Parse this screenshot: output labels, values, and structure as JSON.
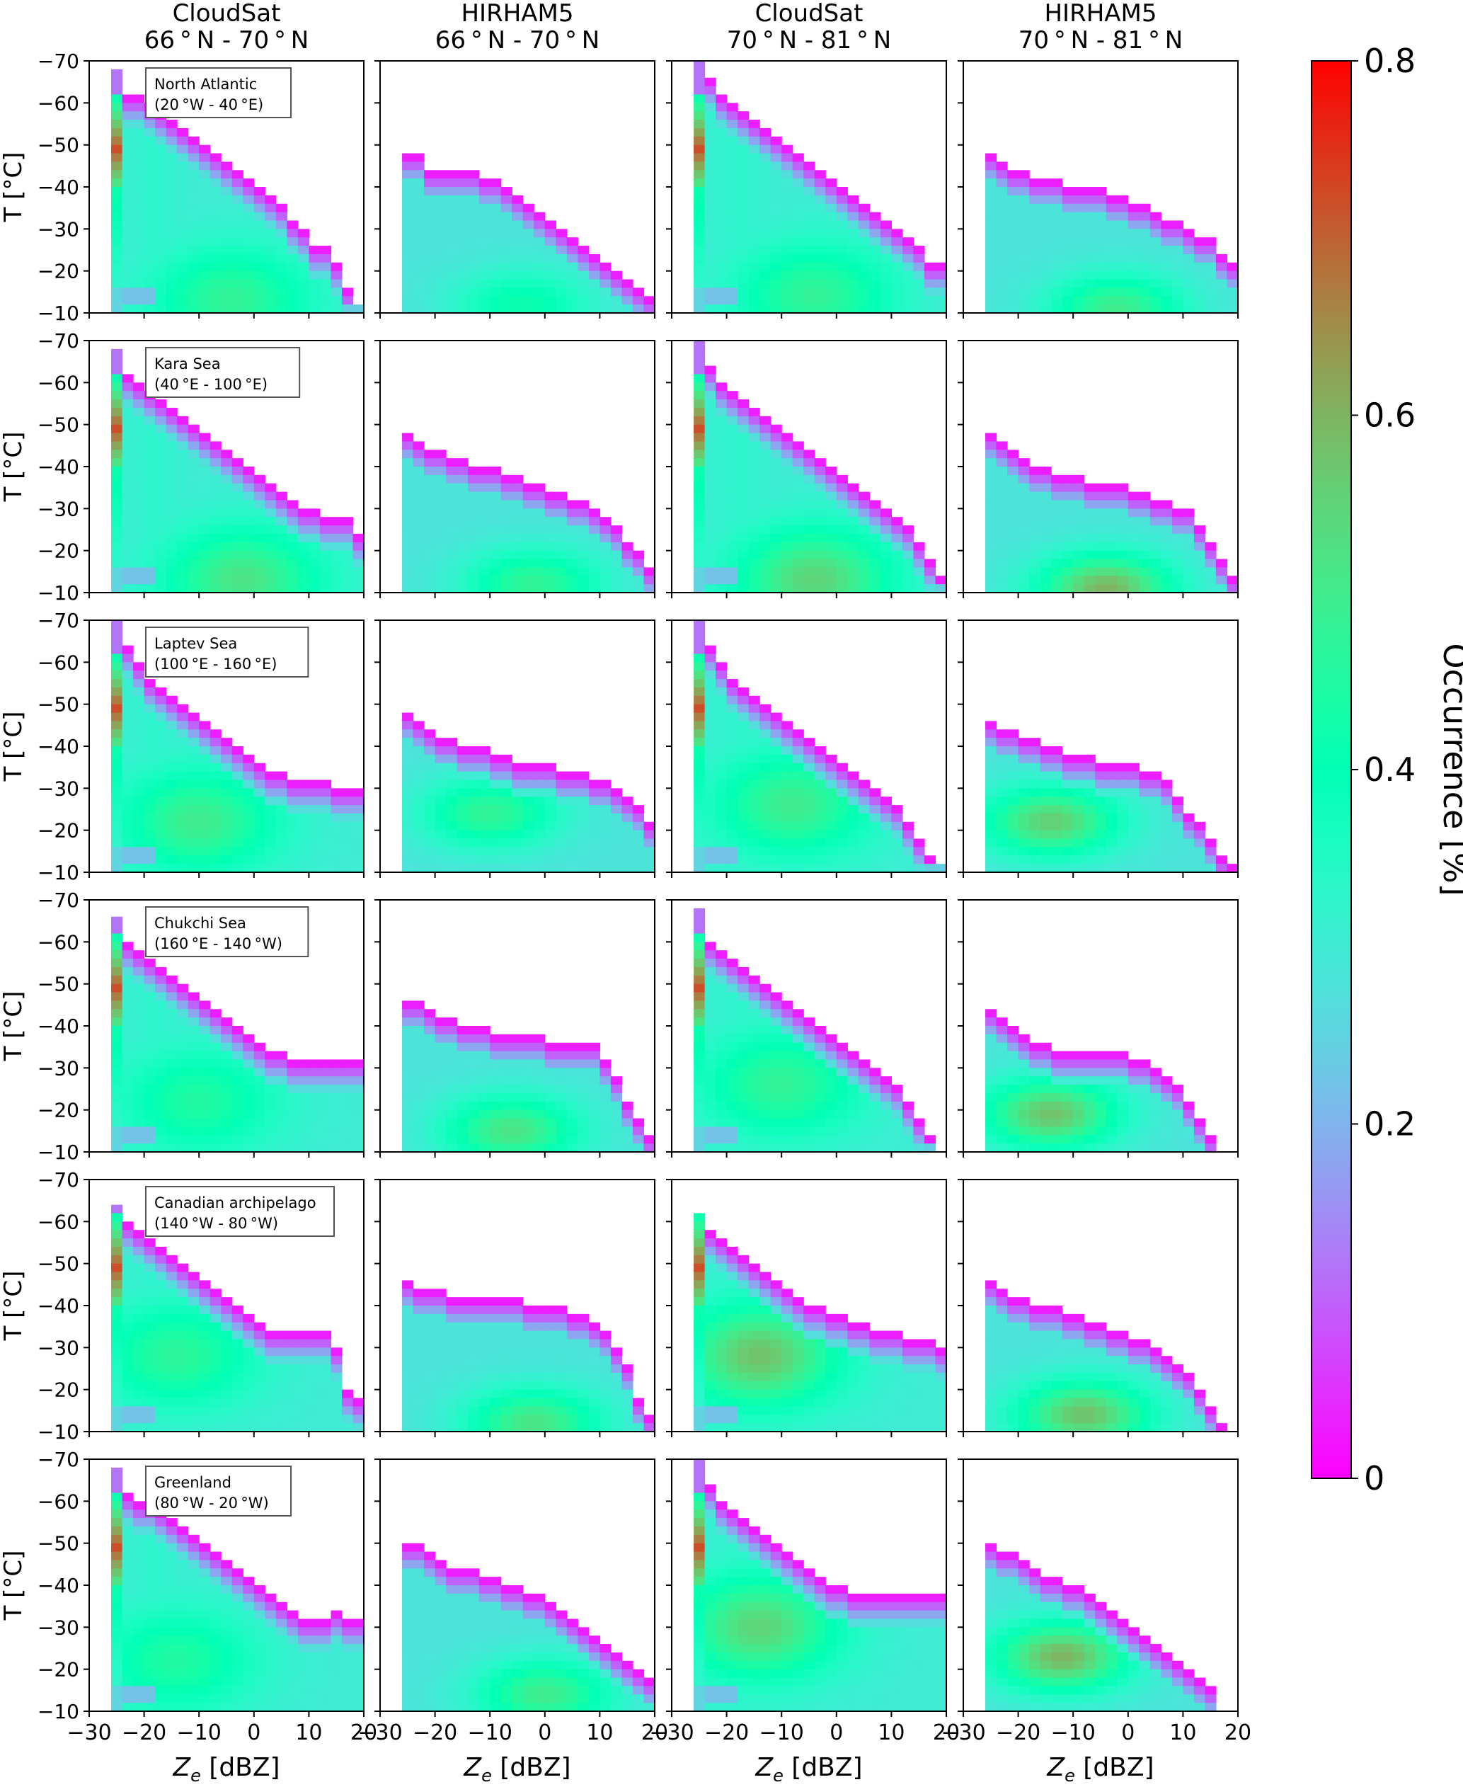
{
  "chart_data": {
    "type": "heatmap",
    "description_of_layout": "6 rows (regions) x 4 columns; joint histograms of temperature vs radar reflectivity",
    "columns": [
      {
        "title_line1": "CloudSat",
        "title_line2": "66$N$70",
        "title": "CloudSat\n66 ° N - 70 ° N"
      },
      {
        "title_line1": "HIRHAM5",
        "title": "HIRHAM5\n66 ° N - 70 ° N"
      },
      {
        "title_line1": "CloudSat",
        "title": "CloudSat\n70 ° N - 81 ° N"
      },
      {
        "title_line1": "HIRHAM5",
        "title": "HIRHAM5\n70 ° N - 81 ° N"
      }
    ],
    "column_titles": [
      [
        "CloudSat",
        "66 ° N - 70 ° N"
      ],
      [
        "HIRHAM5",
        "66 ° N - 70 ° N"
      ],
      [
        "CloudSat",
        "70 ° N - 81 ° N"
      ],
      [
        "HIRHAM5",
        "70 ° N - 81 ° N"
      ]
    ],
    "regions": [
      {
        "name": "North Atlantic",
        "range": "(20 °W - 40 °E)"
      },
      {
        "name": "Kara Sea",
        "range": "(40 °E - 100 °E)"
      },
      {
        "name": "Laptev Sea",
        "range": "(100 °E - 160 °E)"
      },
      {
        "name": "Chukchi Sea",
        "range": "(160 °E - 140 °W)"
      },
      {
        "name": "Canadian archipelago",
        "range": "(140 °W - 80 °W)"
      },
      {
        "name": "Greenland",
        "range": "(80 °W - 20 °W)"
      }
    ],
    "xlabel_main": "Z",
    "xlabel_sub": "e",
    "xlabel_unit": " [dBZ]",
    "ylabel": "T [°C]",
    "xlim": [
      -30,
      20
    ],
    "ylim": [
      -70,
      -10
    ],
    "y_inverted": true,
    "xticks": [
      -30,
      -20,
      -10,
      0,
      10,
      20
    ],
    "yticks": [
      -70,
      -60,
      -50,
      -40,
      -30,
      -20,
      -10
    ],
    "xticklabels": [
      "−30",
      "−20",
      "−10",
      "0",
      "10",
      "20"
    ],
    "yticklabels": [
      "−70",
      "−60",
      "−50",
      "−40",
      "−30",
      "−20",
      "−10"
    ],
    "colorbar": {
      "label": "Occurrence [%]",
      "range": [
        0,
        0.8
      ],
      "ticks": [
        0,
        0.2,
        0.4,
        0.6,
        0.8
      ],
      "ticklabels": [
        "0",
        "0.2",
        "0.4",
        "0.6",
        "0.8"
      ],
      "colormap": "rainbow"
    },
    "bin_width_x": 2,
    "bin_height_y": 2,
    "x_bin_start": -26,
    "panels": [
      [
        {
          "tops": [
            -68,
            -62,
            -62,
            -60,
            -58,
            -56,
            -54,
            -52,
            -50,
            -48,
            -46,
            -44,
            -42,
            -40,
            -38,
            -36,
            -32,
            -30,
            -26,
            -26,
            -22,
            -16,
            -12
          ],
          "rmax": 18,
          "peak": [
            -2,
            -12,
            0.48
          ],
          "peak2": [
            -25,
            -48,
            0.6
          ],
          "bg": 0.3,
          "floor": 0.28
        },
        {
          "tops": [
            -48,
            -48,
            -44,
            -44,
            -44,
            -44,
            -44,
            -42,
            -42,
            -40,
            -38,
            -36,
            -34,
            -32,
            -30,
            -28,
            -26,
            -24,
            -22,
            -20,
            -18,
            -16,
            -14
          ],
          "rmax": 16,
          "peak": [
            -4,
            -12,
            0.42
          ],
          "bg": 0.2,
          "floor": 0.28
        }
      ]
    ]
  }
}
